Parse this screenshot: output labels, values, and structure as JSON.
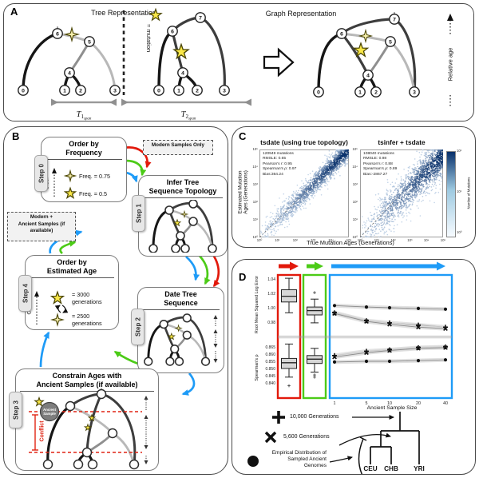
{
  "colors": {
    "red": "#e2190b",
    "green": "#4ccb17",
    "blue": "#1e9bf7",
    "star_yellow": "#f9e748",
    "star_pale": "#f6efad",
    "scatter_dark": "#08306b",
    "scatter_light": "#cddff2",
    "conflict_red": "#e02413",
    "ancient_gray": "#7d7d7d"
  },
  "a": {
    "label": "A",
    "tree_title": "Tree Representation",
    "graph_title": "Graph Representation",
    "mutation_eq": "= mutation",
    "relative_age": "Relative age",
    "t1": {
      "sym": "T",
      "sub": "1",
      "subsub": "span"
    },
    "t2": {
      "sym": "T",
      "sub": "2",
      "subsub": "span"
    },
    "nodes": [
      "0",
      "1",
      "2",
      "3",
      "4",
      "5",
      "6",
      "7"
    ]
  },
  "b": {
    "label": "B",
    "modern_only": "Modern Samples Only",
    "modern_ancient_1": "Modern +",
    "modern_ancient_2": "Ancient Samples (if",
    "modern_ancient_3": "available)",
    "older": "Older",
    "step0": {
      "tab": "Step 0",
      "t1": "Order by",
      "t2": "Frequency",
      "f1": "Freq. = 0.75",
      "f2": "Freq. = 0.5"
    },
    "step1": {
      "tab": "Step 1",
      "t1": "Infer Tree",
      "t2": "Sequence Topology"
    },
    "step2": {
      "tab": "Step 2",
      "t1": "Date Tree",
      "t2": "Sequence"
    },
    "step3": {
      "tab": "Step 3",
      "t1": "Constrain Ages with",
      "t2": "Ancient Samples (if available)",
      "conflict": "Conflict",
      "anc1": "Ancient",
      "anc2": "Sample"
    },
    "step4": {
      "tab": "Step 4",
      "t1": "Order by",
      "t2": "Estimated Age",
      "g1a": "= 3000",
      "g1b": "generations",
      "g2a": "= 2500",
      "g2b": "generations"
    }
  },
  "c": {
    "label": "C",
    "plot1_title": "tsdate (using true topology)",
    "plot2_title": "tsinfer + tsdate",
    "plot1_stats": [
      "120949 mutations",
      "RMSLE: 0.65",
      "Pearson's r: 0.95",
      "Spearman's ρ: 0.97",
      "Bias:364.24"
    ],
    "plot2_stats": [
      "108040 mutations",
      "RMSLE: 0.98",
      "Pearson's r: 0.88",
      "Spearman's ρ: 0.89",
      "Bias:-2867.27"
    ],
    "xlabel": "True Mutation Ages (Generations)",
    "ylabel_1": "Estimated Mutation",
    "ylabel_2": "Ages (Generations)",
    "colorbar_label": "Number of Mutations"
  },
  "d": {
    "label": "D",
    "ylabel_top": "Root Mean Squared Log Error",
    "ylabel_bottom": "Spearman's ρ",
    "xlabel": "Ancient Sample Size",
    "legend_plus": "10,000 Generations",
    "legend_cross": "5,600 Generations",
    "legend_dot_1": "Empirical Distribution of",
    "legend_dot_2": "Sampled Ancient",
    "legend_dot_3": "Genomes",
    "pop1": "CEU",
    "pop2": "CHB",
    "pop3": "YRI"
  },
  "chart_data": {
    "c_axis_ticks": [
      "10⁰",
      "10¹",
      "10²",
      "10³",
      "10⁴",
      "10⁵"
    ],
    "colorbar": {
      "label": "Number of Mutations",
      "ticks": [
        "10²",
        "10¹",
        "10⁰"
      ]
    },
    "scatter_left": {
      "type": "scatter",
      "title": "tsdate (using true topology)",
      "xlabel": "True Mutation Ages (Generations)",
      "ylabel": "Estimated Mutation Ages (Generations)",
      "xscale": "log",
      "yscale": "log",
      "xlim_log10": [
        0,
        5
      ],
      "ylim_log10": [
        0,
        5
      ],
      "n_mutations": 120949,
      "rmsle": 0.65,
      "pearson_r": 0.95,
      "spearman_rho": 0.97,
      "bias": 364.24
    },
    "scatter_right": {
      "type": "scatter",
      "title": "tsinfer + tsdate",
      "xlabel": "True Mutation Ages (Generations)",
      "ylabel": "Estimated Mutation Ages (Generations)",
      "xscale": "log",
      "yscale": "log",
      "xlim_log10": [
        0,
        5
      ],
      "ylim_log10": [
        0,
        5
      ],
      "n_mutations": 108040,
      "rmsle": 0.98,
      "pearson_r": 0.88,
      "spearman_rho": 0.89,
      "bias": -2867.27
    },
    "rmsle": {
      "type": "box+line",
      "ylabel": "Root Mean Squared Log Error",
      "yticks": [
        "1.04",
        "1.02",
        "1.00",
        "0.98"
      ],
      "box_red": {
        "whislo": 0.993,
        "q1": 1.008,
        "med": 1.016,
        "q3": 1.025,
        "whishi": 1.041,
        "fliers": []
      },
      "box_green": {
        "whislo": 0.979,
        "q1": 0.99,
        "med": 0.996,
        "q3": 1.001,
        "whishi": 1.012,
        "fliers": [
          1.021
        ]
      },
      "x": [
        1,
        5,
        10,
        20,
        40
      ],
      "series": [
        {
          "name": "Empirical Distribution",
          "marker": "dot",
          "values": [
            1.003,
            1.001,
            1.0,
            0.999,
            0.998
          ]
        },
        {
          "name": "10,000 Generations",
          "marker": "plus",
          "values": [
            0.993,
            0.982,
            0.979,
            0.976,
            0.973
          ]
        },
        {
          "name": "5,600 Generations",
          "marker": "cross",
          "values": [
            0.992,
            0.981,
            0.977,
            0.973,
            0.971
          ]
        }
      ]
    },
    "spearman": {
      "type": "box+line",
      "ylabel": "Spearman's ρ",
      "yticks": [
        "0.865",
        "0.860",
        "0.855",
        "0.850",
        "0.845",
        "0.840"
      ],
      "box_red": {
        "whislo": 0.844,
        "q1": 0.85,
        "med": 0.854,
        "q3": 0.857,
        "whishi": 0.867,
        "fliers": [
          0.838
        ]
      },
      "box_green": {
        "whislo": 0.8475,
        "q1": 0.8535,
        "med": 0.8565,
        "q3": 0.859,
        "whishi": 0.864,
        "fliers": [
          0.8455,
          0.844
        ]
      },
      "x": [
        1,
        5,
        10,
        20,
        40
      ],
      "series": [
        {
          "name": "10,000 Generations",
          "marker": "plus",
          "values": [
            0.859,
            0.862,
            0.863,
            0.8645,
            0.865
          ]
        },
        {
          "name": "5,600 Generations",
          "marker": "cross",
          "values": [
            0.858,
            0.861,
            0.8625,
            0.864,
            0.8645
          ]
        },
        {
          "name": "Empirical Distribution",
          "marker": "dot",
          "values": [
            0.8545,
            0.855,
            0.855,
            0.8555,
            0.856
          ]
        }
      ]
    },
    "d_xticks": [
      "1",
      "5",
      "10",
      "20",
      "40"
    ]
  }
}
